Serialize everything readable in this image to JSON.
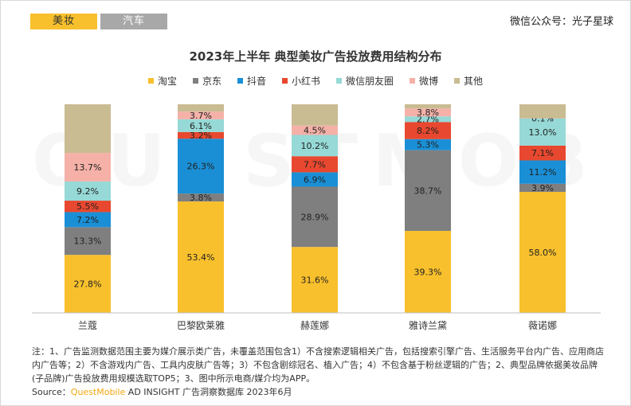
{
  "tabs": [
    {
      "label": "美妆",
      "active": true
    },
    {
      "label": "汽车",
      "active": false
    }
  ],
  "credit": "微信公众号：光子星球",
  "watermark": "QUESTMOBILE",
  "note": "注：1、广告监测数据范围主要为媒介展示类广告，未覆盖范围包含1）不含搜索逻辑相关广告，包括搜索引擎广告、生活服务平台内广告、应用商店内广告等；2）不含游戏内广告、工具内皮肤广告等；3）不包含剧综冠名、植入广告；4）不包含基于粉丝逻辑的广告；2、典型品牌依据美妆品牌(子品牌)广告投放费用规模选取TOP5；3、图中所示电商/媒介均为APP。",
  "source": {
    "prefix": "Source：",
    "brand": "QuestMobile",
    "suffix": " AD INSIGHT 广告洞察数据库 2023年6月"
  },
  "chart_data": {
    "type": "bar",
    "stacked": true,
    "percent_stacked": true,
    "title": "2023年上半年 典型美妆广告投放费用结构分布",
    "categories": [
      "兰蔻",
      "巴黎欧莱雅",
      "赫莲娜",
      "雅诗兰黛",
      "薇诺娜"
    ],
    "legend_position": "top",
    "grid": false,
    "ylim": [
      0,
      100
    ],
    "series": [
      {
        "name": "淘宝",
        "color": "#f8c02c",
        "values": [
          27.8,
          53.4,
          31.6,
          39.3,
          58.0
        ],
        "labels": [
          "27.8%",
          "53.4%",
          "31.6%",
          "39.3%",
          "58.0%"
        ]
      },
      {
        "name": "京东",
        "color": "#7f7f7f",
        "values": [
          13.3,
          3.8,
          28.9,
          38.7,
          3.9
        ],
        "labels": [
          "13.3%",
          "3.8%",
          "28.9%",
          "38.7%",
          "3.9%"
        ]
      },
      {
        "name": "抖音",
        "color": "#1a8fd6",
        "values": [
          7.2,
          26.3,
          6.9,
          5.3,
          11.2
        ],
        "labels": [
          "7.2%",
          "26.3%",
          "6.9%",
          "5.3%",
          "11.2%"
        ]
      },
      {
        "name": "小红书",
        "color": "#e8482f",
        "values": [
          5.5,
          3.2,
          7.7,
          8.2,
          7.1
        ],
        "labels": [
          "5.5%",
          "3.2%",
          "7.7%",
          "8.2%",
          "7.1%"
        ]
      },
      {
        "name": "微信朋友圈",
        "color": "#96d9d6",
        "values": [
          9.2,
          6.1,
          10.2,
          2.7,
          13.0
        ],
        "labels": [
          "9.2%",
          "6.1%",
          "10.2%",
          "2.7%",
          "13.0%"
        ]
      },
      {
        "name": "微博",
        "color": "#f5b1a8",
        "values": [
          13.7,
          3.7,
          4.5,
          3.8,
          0.1
        ],
        "labels": [
          "13.7%",
          "3.7%",
          "4.5%",
          "3.8%",
          "0.1%"
        ]
      },
      {
        "name": "其他",
        "color": "#c9bb92",
        "values": [
          23.3,
          3.5,
          10.2,
          2.0,
          6.7
        ],
        "labels": [
          "",
          "",
          "",
          "",
          ""
        ]
      }
    ]
  }
}
